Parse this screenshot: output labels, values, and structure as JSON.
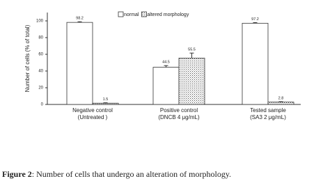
{
  "chart_data": {
    "type": "bar",
    "ylabel": "Number of cells (% of total)",
    "categories": [
      [
        "Negative control",
        "(Untreated )"
      ],
      [
        "Positive control",
        "(DNCB 4 μg/mL)"
      ],
      [
        "Tested sample",
        "(SA3 2 μg/mL)"
      ]
    ],
    "series": [
      {
        "name": "normal",
        "color": "#ffffff",
        "values": [
          98.2,
          44.5,
          97.2
        ],
        "errors": [
          0.8,
          2,
          0.8
        ]
      },
      {
        "name": "altered morphology",
        "color": "#bbbbbb",
        "pattern": "dots",
        "values": [
          1.5,
          55.5,
          2.8
        ],
        "errors": [
          0.5,
          6,
          0.5
        ]
      }
    ],
    "ylim": [
      0,
      110
    ],
    "yticks": [
      0,
      20,
      40,
      60,
      80,
      100
    ],
    "grid": false,
    "legend": "top"
  },
  "caption": {
    "label": "Figure 2",
    "text": ": Number of cells that undergo an alteration of morphology."
  }
}
